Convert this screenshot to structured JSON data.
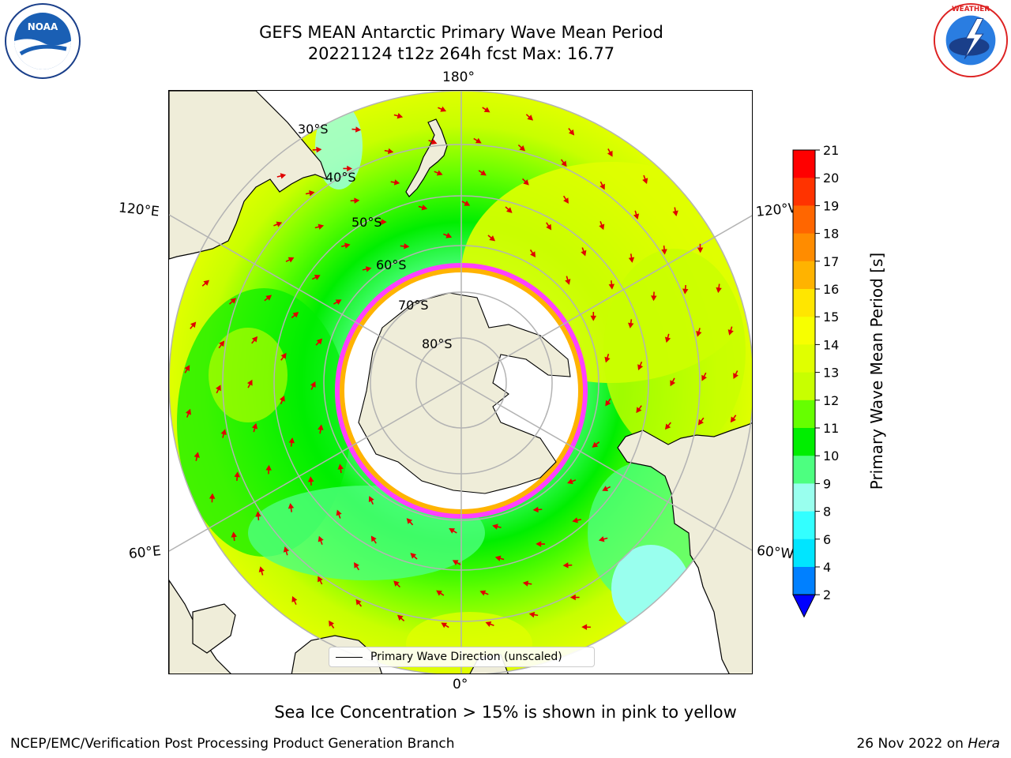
{
  "header": {
    "title_line1": "GEFS MEAN Antarctic Primary Wave Mean Period",
    "title_line2": "20221124 t12z 264h fcst   Max: 16.77"
  },
  "logos": {
    "left": "NOAA",
    "right": "NATIONAL WEATHER SERVICE"
  },
  "map": {
    "projection": "south-polar-stereographic",
    "longitude_labels": {
      "top": "180°",
      "bottom": "0°",
      "left_upper": "120°E",
      "left_lower": "60°E",
      "right_upper": "120°W",
      "right_lower": "60°W"
    },
    "latitude_labels": [
      "30°S",
      "40°S",
      "50°S",
      "60°S",
      "70°S",
      "80°S"
    ],
    "colors": {
      "land": "#efedd9",
      "ice": "#ffffff",
      "grid": "#b3b3b3",
      "arrow": "#e00000"
    },
    "legend_label": "Primary Wave Direction (unscaled)"
  },
  "colorbar": {
    "label": "Primary Wave Mean Period [s]",
    "ticks": [
      "21",
      "20",
      "19",
      "18",
      "17",
      "16",
      "15",
      "14",
      "13",
      "12",
      "11",
      "10",
      "9",
      "8",
      "6",
      "4",
      "2"
    ],
    "colors": [
      "#ff0000",
      "#ff3300",
      "#ff6600",
      "#ff8c00",
      "#ffb300",
      "#ffe600",
      "#f7ff00",
      "#e0ff00",
      "#c8ff00",
      "#66ff00",
      "#00ee00",
      "#4dff80",
      "#99ffee",
      "#33ffff",
      "#00e5ff",
      "#0080ff"
    ],
    "extend_color": "#0000ff"
  },
  "notes": {
    "sea_ice": "Sea Ice Concentration > 15% is shown in pink to yellow"
  },
  "footer": {
    "left": "NCEP/EMC/Verification Post Processing Product Generation Branch",
    "right_date": "26 Nov 2022 on ",
    "right_machine": "Hera"
  },
  "chart_data": {
    "type": "heatmap",
    "title": "GEFS MEAN Antarctic Primary Wave Mean Period",
    "subtitle": "20221124 t12z 264h fcst   Max: 16.77",
    "colorbar_label": "Primary Wave Mean Period [s]",
    "colorbar_levels": [
      2,
      4,
      6,
      8,
      9,
      10,
      11,
      12,
      13,
      14,
      15,
      16,
      17,
      18,
      19,
      20,
      21
    ],
    "max_value": 16.77,
    "latitude_circles": [
      -30,
      -40,
      -50,
      -60,
      -70,
      -80
    ],
    "legend": [
      "Primary Wave Direction (unscaled)"
    ]
  }
}
